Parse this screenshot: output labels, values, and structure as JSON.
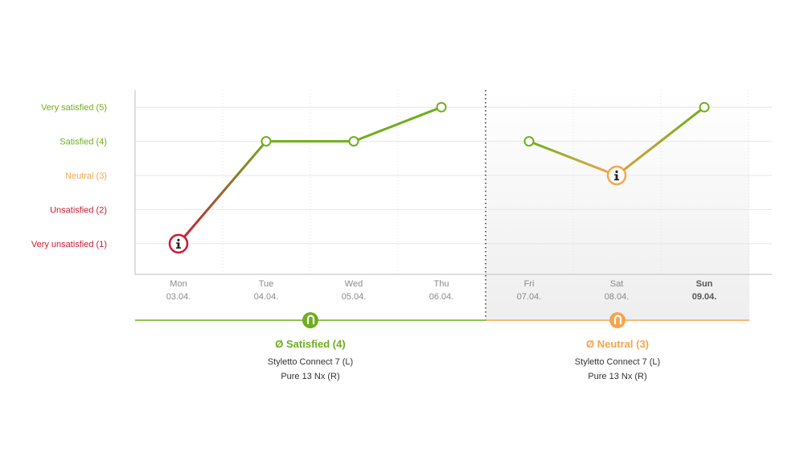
{
  "chart_data": {
    "type": "line",
    "y_levels": [
      {
        "value": 5,
        "label": "Very satisfied (5)",
        "color": "#6fae1f"
      },
      {
        "value": 4,
        "label": "Satisfied (4)",
        "color": "#6fae1f"
      },
      {
        "value": 3,
        "label": "Neutral (3)",
        "color": "#f3a64f"
      },
      {
        "value": 2,
        "label": "Unsatisfied (2)",
        "color": "#cc1a33"
      },
      {
        "value": 1,
        "label": "Very unsatisfied (1)",
        "color": "#cc1a33"
      }
    ],
    "ylim": [
      0.1,
      5.5
    ],
    "days": [
      {
        "day": "Mon",
        "date": "03.04."
      },
      {
        "day": "Tue",
        "date": "04.04."
      },
      {
        "day": "Wed",
        "date": "05.04."
      },
      {
        "day": "Thu",
        "date": "06.04."
      },
      {
        "day": "Fri",
        "date": "07.04."
      },
      {
        "day": "Sat",
        "date": "08.04."
      },
      {
        "day": "Sun",
        "date": "09.04.",
        "bold": true
      }
    ],
    "segments": [
      {
        "values": [
          1,
          4,
          4,
          5
        ],
        "day_index_start": 0
      },
      {
        "values": [
          4,
          3,
          5
        ],
        "day_index_start": 4
      }
    ],
    "info_points": [
      0,
      5
    ],
    "grid": true
  },
  "weeks": [
    {
      "avg_label": "Ø Satisfied (4)",
      "color": "#6fae1f",
      "device_left": "Styletto Connect 7 (L)",
      "device_right": "Pure 13 Nx (R)"
    },
    {
      "avg_label": "Ø Neutral (3)",
      "color": "#f3a64f",
      "device_left": "Styletto Connect 7 (L)",
      "device_right": "Pure 13 Nx (R)"
    }
  ]
}
